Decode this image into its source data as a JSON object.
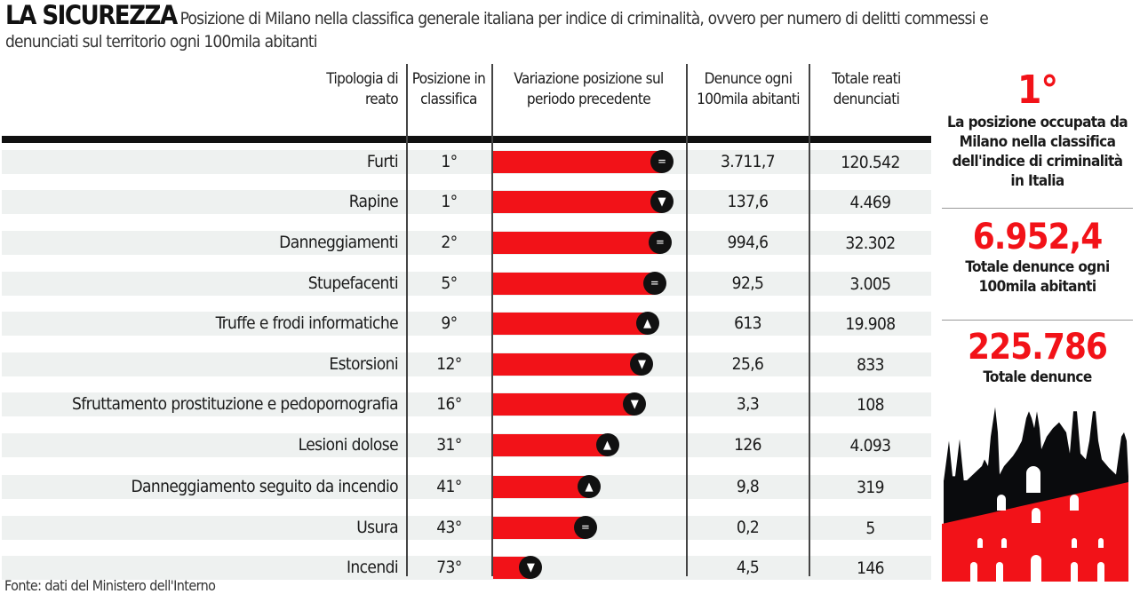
{
  "title": "LA SICUREZZA",
  "subtitle": "Posizione di Milano nella classifica generale italiana per indice di criminalità, ovvero per numero di delitti commessi e denunciati sul territorio ogni 100mila abitanti",
  "columns": [
    "Tipologia di reato",
    "Posizione in classifica",
    "Variazione posizione sul periodo precedente",
    "Denunce ogni 100mila abitanti",
    "Totale reati denunciati"
  ],
  "colors": {
    "accent": "#f21218",
    "row_bg": "#eef1f0"
  },
  "chart_data": {
    "type": "table",
    "rows": [
      {
        "reato": "Furti",
        "posizione": "1°",
        "rank": 1,
        "variazione": "equal",
        "denunce_100k": "3.711,7",
        "totale": "120.542"
      },
      {
        "reato": "Rapine",
        "posizione": "1°",
        "rank": 1,
        "variazione": "down",
        "denunce_100k": "137,6",
        "totale": "4.469"
      },
      {
        "reato": "Danneggiamenti",
        "posizione": "2°",
        "rank": 2,
        "variazione": "equal",
        "denunce_100k": "994,6",
        "totale": "32.302"
      },
      {
        "reato": "Stupefacenti",
        "posizione": "5°",
        "rank": 5,
        "variazione": "equal",
        "denunce_100k": "92,5",
        "totale": "3.005"
      },
      {
        "reato": "Truffe e frodi informatiche",
        "posizione": "9°",
        "rank": 9,
        "variazione": "up",
        "denunce_100k": "613",
        "totale": "19.908"
      },
      {
        "reato": "Estorsioni",
        "posizione": "12°",
        "rank": 12,
        "variazione": "down",
        "denunce_100k": "25,6",
        "totale": "833"
      },
      {
        "reato": "Sfruttamento prostituzione e pedopornografia",
        "posizione": "16°",
        "rank": 16,
        "variazione": "down",
        "denunce_100k": "3,3",
        "totale": "108"
      },
      {
        "reato": "Lesioni dolose",
        "posizione": "31°",
        "rank": 31,
        "variazione": "up",
        "denunce_100k": "126",
        "totale": "4.093"
      },
      {
        "reato": "Danneggiamento seguito da incendio",
        "posizione": "41°",
        "rank": 41,
        "variazione": "up",
        "denunce_100k": "9,8",
        "totale": "319"
      },
      {
        "reato": "Usura",
        "posizione": "43°",
        "rank": 43,
        "variazione": "equal",
        "denunce_100k": "0,2",
        "totale": "5"
      },
      {
        "reato": "Incendi",
        "posizione": "73°",
        "rank": 73,
        "variazione": "down",
        "denunce_100k": "4,5",
        "totale": "146"
      }
    ]
  },
  "side": {
    "pos_value": "1°",
    "pos_label": "La posizione occupata da Milano nella classifica dell'indice di criminalità in Italia",
    "den_value": "6.952,4",
    "den_label": "Totale denunce ogni 100mila abitanti",
    "tot_value": "225.786",
    "tot_label": "Totale denunce"
  },
  "source": "Fonte: dati del Ministero dell'Interno"
}
